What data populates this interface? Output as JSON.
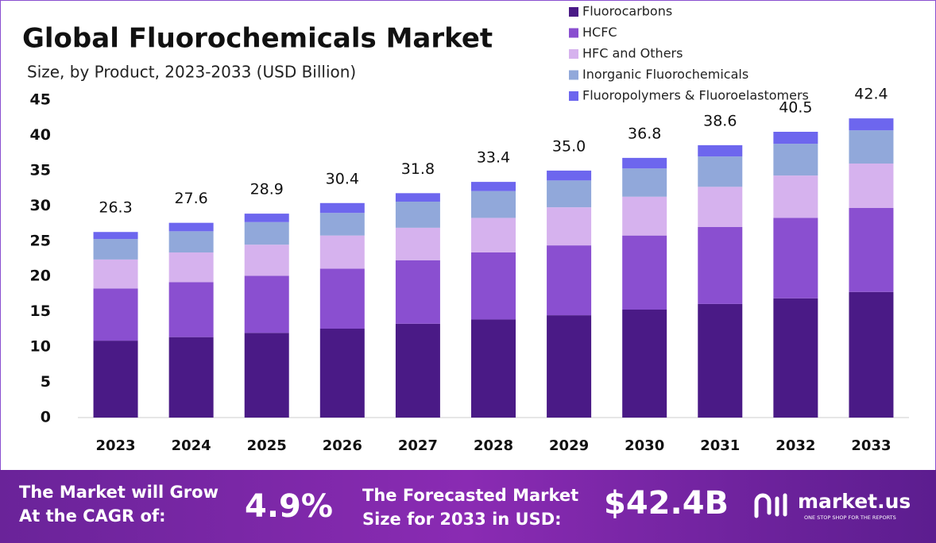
{
  "chart_data": {
    "type": "stacked-bar",
    "title": "Global Fluorochemicals Market",
    "subtitle": "Size, by Product, 2023-2033 (USD Billion)",
    "categories": [
      "2023",
      "2024",
      "2025",
      "2026",
      "2027",
      "2028",
      "2029",
      "2030",
      "2031",
      "2032",
      "2033"
    ],
    "series": [
      {
        "name": "Fluorocarbons",
        "color": "#4a1a86",
        "values": [
          10.9,
          11.4,
          12.0,
          12.6,
          13.3,
          13.9,
          14.5,
          15.3,
          16.1,
          16.9,
          17.8
        ]
      },
      {
        "name": "HCFC",
        "color": "#8a4fd0",
        "values": [
          7.4,
          7.8,
          8.1,
          8.5,
          9.0,
          9.5,
          9.9,
          10.5,
          10.9,
          11.4,
          11.9
        ]
      },
      {
        "name": "HFC and Others",
        "color": "#d6b2ee",
        "values": [
          4.1,
          4.2,
          4.4,
          4.7,
          4.6,
          4.9,
          5.4,
          5.5,
          5.7,
          6.0,
          6.3
        ]
      },
      {
        "name": "Inorganic Fluorochemicals",
        "color": "#91a8da",
        "values": [
          2.9,
          3.0,
          3.2,
          3.2,
          3.7,
          3.8,
          3.8,
          4.0,
          4.3,
          4.5,
          4.7
        ]
      },
      {
        "name": "Fluoropolymers & Fluoroelastomers",
        "color": "#6d66ee",
        "values": [
          1.0,
          1.2,
          1.2,
          1.4,
          1.2,
          1.3,
          1.4,
          1.5,
          1.6,
          1.7,
          1.7
        ]
      }
    ],
    "totals": [
      26.3,
      27.6,
      28.9,
      30.4,
      31.8,
      33.4,
      35.0,
      36.8,
      38.6,
      40.5,
      42.4
    ],
    "totals_labels": [
      "26.3",
      "27.6",
      "28.9",
      "30.4",
      "31.8",
      "33.4",
      "35.0",
      "36.8",
      "38.6",
      "40.5",
      "42.4"
    ],
    "ylim": [
      0,
      45
    ],
    "yticks": [
      0,
      5,
      10,
      15,
      20,
      25,
      30,
      35,
      40,
      45
    ],
    "grid": false,
    "legend": "top-right"
  },
  "footer": {
    "cagr_text": [
      "The Market will Grow",
      "At the CAGR of:"
    ],
    "cagr_value": "4.9%",
    "forecast_text": [
      "The Forecasted Market",
      "Size for 2033 in USD:"
    ],
    "forecast_value": "$42.4B",
    "brand": "market.us",
    "tagline": "ONE STOP SHOP FOR THE REPORTS"
  }
}
